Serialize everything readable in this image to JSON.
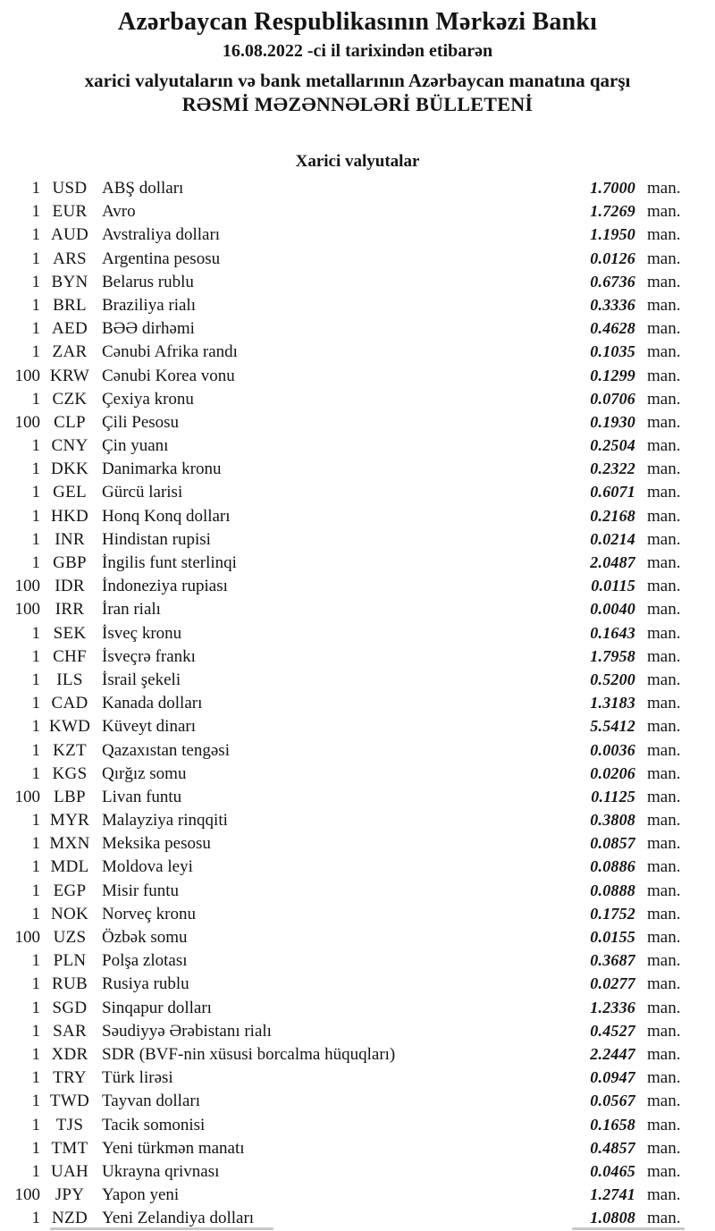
{
  "header": {
    "bank_name": "Azərbaycan Respublikasının Mərkəzi Bankı",
    "date_line": "16.08.2022 -ci il tarixindən etibarən",
    "subtitle": "xarici valyutaların və bank metallarının Azərbaycan manatına qarşı",
    "bulletin_title": "RƏSMİ MƏZƏNNƏLƏRİ BÜLLETENİ"
  },
  "section": {
    "title": "Xarici valyutalar"
  },
  "unit_label": "man.",
  "rates": [
    {
      "qty": "1",
      "code": "USD",
      "name": "ABŞ dolları",
      "rate": "1.7000"
    },
    {
      "qty": "1",
      "code": "EUR",
      "name": "Avro",
      "rate": "1.7269"
    },
    {
      "qty": "1",
      "code": "AUD",
      "name": "Avstraliya dolları",
      "rate": "1.1950"
    },
    {
      "qty": "1",
      "code": "ARS",
      "name": "Argentina pesosu",
      "rate": "0.0126"
    },
    {
      "qty": "1",
      "code": "BYN",
      "name": "Belarus rublu",
      "rate": "0.6736"
    },
    {
      "qty": "1",
      "code": "BRL",
      "name": "Braziliya rialı",
      "rate": "0.3336"
    },
    {
      "qty": "1",
      "code": "AED",
      "name": "BƏƏ dirhəmi",
      "rate": "0.4628"
    },
    {
      "qty": "1",
      "code": "ZAR",
      "name": "Cənubi Afrika randı",
      "rate": "0.1035"
    },
    {
      "qty": "100",
      "code": "KRW",
      "name": "Cənubi Korea vonu",
      "rate": "0.1299"
    },
    {
      "qty": "1",
      "code": "CZK",
      "name": "Çexiya kronu",
      "rate": "0.0706"
    },
    {
      "qty": "100",
      "code": "CLP",
      "name": "Çili Pesosu",
      "rate": "0.1930"
    },
    {
      "qty": "1",
      "code": "CNY",
      "name": "Çin yuanı",
      "rate": "0.2504"
    },
    {
      "qty": "1",
      "code": "DKK",
      "name": "Danimarka kronu",
      "rate": "0.2322"
    },
    {
      "qty": "1",
      "code": "GEL",
      "name": "Gürcü larisi",
      "rate": "0.6071"
    },
    {
      "qty": "1",
      "code": "HKD",
      "name": "Honq Konq dolları",
      "rate": "0.2168"
    },
    {
      "qty": "1",
      "code": "INR",
      "name": "Hindistan rupisi",
      "rate": "0.0214"
    },
    {
      "qty": "1",
      "code": "GBP",
      "name": "İngilis funt sterlinqi",
      "rate": "2.0487"
    },
    {
      "qty": "100",
      "code": "IDR",
      "name": "İndoneziya rupiası",
      "rate": "0.0115"
    },
    {
      "qty": "100",
      "code": "IRR",
      "name": "İran rialı",
      "rate": "0.0040"
    },
    {
      "qty": "1",
      "code": "SEK",
      "name": "İsveç kronu",
      "rate": "0.1643"
    },
    {
      "qty": "1",
      "code": "CHF",
      "name": "İsveçrə frankı",
      "rate": "1.7958"
    },
    {
      "qty": "1",
      "code": "ILS",
      "name": "İsrail şekeli",
      "rate": "0.5200"
    },
    {
      "qty": "1",
      "code": "CAD",
      "name": "Kanada dolları",
      "rate": "1.3183"
    },
    {
      "qty": "1",
      "code": "KWD",
      "name": "Küveyt dinarı",
      "rate": "5.5412"
    },
    {
      "qty": "1",
      "code": "KZT",
      "name": "Qazaxıstan tengəsi",
      "rate": "0.0036"
    },
    {
      "qty": "1",
      "code": "KGS",
      "name": "Qırğız somu",
      "rate": "0.0206"
    },
    {
      "qty": "100",
      "code": "LBP",
      "name": "Livan funtu",
      "rate": "0.1125"
    },
    {
      "qty": "1",
      "code": "MYR",
      "name": "Malayziya rinqqiti",
      "rate": "0.3808"
    },
    {
      "qty": "1",
      "code": "MXN",
      "name": "Meksika pesosu",
      "rate": "0.0857"
    },
    {
      "qty": "1",
      "code": "MDL",
      "name": "Moldova leyi",
      "rate": "0.0886"
    },
    {
      "qty": "1",
      "code": "EGP",
      "name": "Misir funtu",
      "rate": "0.0888"
    },
    {
      "qty": "1",
      "code": "NOK",
      "name": "Norveç kronu",
      "rate": "0.1752"
    },
    {
      "qty": "100",
      "code": "UZS",
      "name": "Özbək somu",
      "rate": "0.0155"
    },
    {
      "qty": "1",
      "code": "PLN",
      "name": "Polşa zlotası",
      "rate": "0.3687"
    },
    {
      "qty": "1",
      "code": "RUB",
      "name": "Rusiya rublu",
      "rate": "0.0277"
    },
    {
      "qty": "1",
      "code": "SGD",
      "name": "Sinqapur dolları",
      "rate": "1.2336"
    },
    {
      "qty": "1",
      "code": "SAR",
      "name": "Səudiyyə Ərəbistanı rialı",
      "rate": "0.4527"
    },
    {
      "qty": "1",
      "code": "XDR",
      "name": "SDR (BVF-nin xüsusi borcalma hüquqları)",
      "rate": "2.2447"
    },
    {
      "qty": "1",
      "code": "TRY",
      "name": "Türk lirəsi",
      "rate": "0.0947"
    },
    {
      "qty": "1",
      "code": "TWD",
      "name": "Tayvan dolları",
      "rate": "0.0567"
    },
    {
      "qty": "1",
      "code": "TJS",
      "name": "Tacik somonisi",
      "rate": "0.1658"
    },
    {
      "qty": "1",
      "code": "TMT",
      "name": "Yeni türkmən manatı",
      "rate": "0.4857"
    },
    {
      "qty": "1",
      "code": "UAH",
      "name": "Ukrayna qrivnası",
      "rate": "0.0465"
    },
    {
      "qty": "100",
      "code": "JPY",
      "name": "Yapon yeni",
      "rate": "1.2741"
    },
    {
      "qty": "1",
      "code": "NZD",
      "name": "Yeni Zelandiya dolları",
      "rate": "1.0808"
    }
  ]
}
